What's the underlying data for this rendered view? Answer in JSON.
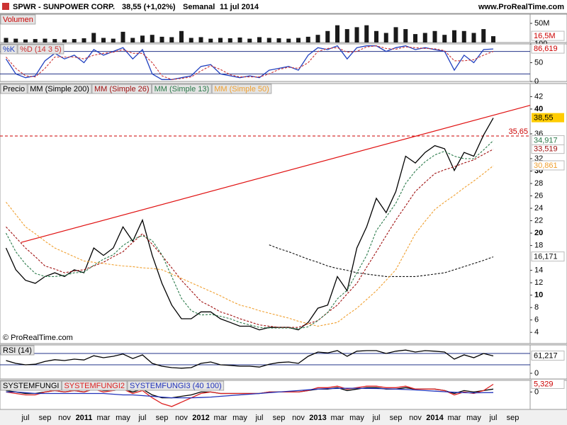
{
  "header": {
    "symbol": "SPWR - SUNPOWER CORP.",
    "price": "38,55 (+1,02%)",
    "period": "Semanal",
    "date": "11 jul 2014",
    "site": "www.ProRealTime.com"
  },
  "chart_data": [
    {
      "type": "bar",
      "title": "Volumen",
      "color": "#1a1a1a",
      "values": [
        12000000,
        10000000,
        8000000,
        9000000,
        10000000,
        9000000,
        8000000,
        9000000,
        11000000,
        25000000,
        12000000,
        10000000,
        28000000,
        12000000,
        18000000,
        20000000,
        15000000,
        14000000,
        30000000,
        12000000,
        14000000,
        10000000,
        12000000,
        11000000,
        13000000,
        10000000,
        14000000,
        12000000,
        11000000,
        10000000,
        12000000,
        15000000,
        20000000,
        30000000,
        45000000,
        35000000,
        40000000,
        45000000,
        30000000,
        25000000,
        40000000,
        35000000,
        22000000,
        25000000,
        30000000,
        20000000,
        32000000,
        30000000,
        25000000,
        35000000,
        16500000,
        null,
        null
      ],
      "last_label": "16,5M",
      "label_text_color": "#cc0000",
      "ylim": [
        0,
        74000000
      ],
      "yticks": [
        {
          "value": 50000000,
          "label": "50M"
        }
      ]
    },
    {
      "type": "line",
      "series": [
        {
          "name": "%K",
          "color": "#1f3fbf",
          "last_label": "86,619",
          "label_text_color": "#cc0000",
          "values": [
            60,
            20,
            10,
            15,
            55,
            75,
            60,
            70,
            50,
            85,
            70,
            80,
            90,
            60,
            85,
            20,
            5,
            5,
            10,
            15,
            40,
            45,
            20,
            15,
            10,
            15,
            10,
            30,
            35,
            40,
            30,
            70,
            90,
            85,
            95,
            60,
            90,
            95,
            95,
            80,
            90,
            95,
            85,
            90,
            85,
            80,
            30,
            70,
            50,
            85,
            86.619,
            null,
            null
          ]
        },
        {
          "name": "%D (14 3 5)",
          "color": "#cc3333",
          "dash": true,
          "values": [
            65,
            35,
            15,
            12,
            35,
            65,
            65,
            65,
            60,
            70,
            75,
            78,
            85,
            75,
            75,
            50,
            15,
            5,
            8,
            12,
            28,
            42,
            32,
            18,
            12,
            12,
            12,
            20,
            32,
            38,
            35,
            50,
            80,
            88,
            90,
            78,
            80,
            92,
            95,
            88,
            86,
            92,
            90,
            88,
            87,
            82,
            55,
            55,
            58,
            70,
            80,
            null,
            null
          ]
        }
      ],
      "ylim": [
        0,
        100
      ],
      "yticks": [
        0,
        50,
        100
      ],
      "levels": [
        20,
        80
      ]
    },
    {
      "type": "line",
      "series": [
        {
          "name": "Precio",
          "color": "#000000",
          "last_label": "38,55",
          "label_color": "#ffcc00",
          "label_text_color": "#000000",
          "values": [
            17.6,
            14.1,
            12.4,
            11.9,
            13.0,
            13.6,
            13.0,
            14.1,
            13.6,
            17.6,
            16.4,
            17.6,
            21.0,
            18.7,
            22.1,
            16.4,
            11.9,
            8.4,
            6.2,
            6.2,
            7.3,
            7.3,
            6.2,
            5.6,
            5.0,
            5.0,
            4.4,
            4.8,
            4.8,
            4.8,
            4.4,
            5.6,
            7.9,
            8.4,
            13.0,
            10.7,
            17.6,
            21.0,
            25.6,
            23.3,
            26.7,
            32.4,
            31.3,
            33.0,
            34.1,
            33.6,
            30.1,
            33.0,
            32.4,
            35.8,
            38.55,
            null,
            null
          ]
        },
        {
          "name": "MM (Simple 200)",
          "color": "#111111",
          "dash": true,
          "last_label": "16,171",
          "values": [
            null,
            null,
            null,
            null,
            null,
            null,
            null,
            null,
            null,
            null,
            null,
            null,
            null,
            null,
            null,
            null,
            null,
            null,
            null,
            null,
            null,
            null,
            null,
            null,
            null,
            null,
            null,
            18.1,
            17.5,
            17.0,
            16.4,
            15.8,
            15.3,
            14.7,
            14.3,
            14.0,
            13.6,
            13.4,
            13.2,
            13.0,
            13.0,
            13.0,
            13.0,
            13.2,
            13.4,
            13.6,
            14.1,
            14.6,
            15.1,
            15.6,
            16.171,
            null,
            null
          ]
        },
        {
          "name": "MM (Simple 26)",
          "color": "#a01010",
          "dash": true,
          "last_label": "33,519",
          "values": [
            21.0,
            19.3,
            17.6,
            16.2,
            14.7,
            14.2,
            13.6,
            13.9,
            14.1,
            14.7,
            15.3,
            16.2,
            17.0,
            18.5,
            19.9,
            18.2,
            16.4,
            14.4,
            12.4,
            10.7,
            9.0,
            8.2,
            7.3,
            6.8,
            6.2,
            5.7,
            5.2,
            5.0,
            4.8,
            4.8,
            4.8,
            5.4,
            5.9,
            7.2,
            8.4,
            10.2,
            11.9,
            14.5,
            17.0,
            19.6,
            22.1,
            24.4,
            26.7,
            28.2,
            29.6,
            30.2,
            30.7,
            31.3,
            31.8,
            32.7,
            33.519,
            null,
            null
          ]
        },
        {
          "name": "MM (Simple 13)",
          "color": "#2a7a4a",
          "dash": true,
          "last_label": "34,917",
          "values": [
            20.0,
            17.0,
            15.0,
            13.5,
            13.0,
            13.0,
            13.2,
            13.6,
            13.7,
            14.8,
            15.8,
            16.5,
            18.0,
            19.0,
            19.6,
            18.8,
            16.5,
            13.0,
            9.5,
            7.5,
            6.8,
            6.9,
            6.6,
            6.2,
            5.6,
            5.2,
            4.8,
            4.7,
            4.7,
            4.7,
            4.6,
            4.9,
            5.9,
            7.2,
            9.4,
            10.8,
            13.6,
            16.4,
            20.4,
            22.6,
            24.8,
            28.0,
            30.0,
            31.5,
            32.6,
            33.2,
            32.4,
            32.0,
            32.0,
            33.4,
            34.917,
            null,
            null
          ]
        },
        {
          "name": "MM (Simple 50)",
          "color": "#f0a030",
          "dash": true,
          "last_label": "30,861",
          "values": [
            25.0,
            23.0,
            21.0,
            19.9,
            18.7,
            17.6,
            16.9,
            16.2,
            15.5,
            15.3,
            15.1,
            14.9,
            14.7,
            14.6,
            14.4,
            14.3,
            14.1,
            13.4,
            12.7,
            12.0,
            11.3,
            10.6,
            9.9,
            9.1,
            8.4,
            8.0,
            7.5,
            7.1,
            6.7,
            6.3,
            5.8,
            5.4,
            5.0,
            5.3,
            5.6,
            6.8,
            7.9,
            9.3,
            10.7,
            12.4,
            14.1,
            17.0,
            19.9,
            21.9,
            23.8,
            25.0,
            26.1,
            27.3,
            28.4,
            29.6,
            30.861,
            null,
            null
          ]
        }
      ],
      "ylim": [
        2.2,
        44.1
      ],
      "yticks": [
        4,
        6,
        8,
        10,
        12,
        14,
        18,
        20,
        22,
        24,
        26,
        28,
        30,
        32,
        36,
        40,
        42
      ],
      "hline": {
        "value": 35.65,
        "label": "35,65",
        "color": "#cc0000"
      },
      "trendline": {
        "values": [
          18.5,
          40.6
        ],
        "color": "#e01010"
      },
      "watermark": "© ProRealTime.com"
    },
    {
      "type": "line",
      "title": "RSI (14)",
      "series": [
        {
          "color": "#000000",
          "last_label": "61,217",
          "values": [
            45,
            35,
            30,
            32,
            42,
            48,
            45,
            50,
            47,
            62,
            55,
            60,
            68,
            52,
            65,
            35,
            25,
            20,
            18,
            20,
            35,
            40,
            30,
            28,
            25,
            25,
            22,
            32,
            38,
            40,
            35,
            60,
            75,
            72,
            80,
            60,
            78,
            80,
            80,
            70,
            78,
            82,
            75,
            80,
            78,
            75,
            50,
            65,
            55,
            70,
            61.217,
            null,
            null
          ]
        }
      ],
      "ylim": [
        -20,
        100
      ],
      "yticks": [
        0
      ],
      "levels": [
        30,
        70
      ]
    },
    {
      "type": "line",
      "series": [
        {
          "name": "SYSTEMFUNGI",
          "color": "#000000",
          "values": [
            1,
            0,
            -1,
            -1,
            0,
            1,
            0,
            1,
            0,
            2,
            1,
            1,
            2,
            0,
            2,
            -2,
            -4,
            -4,
            -3,
            -2,
            0,
            0,
            -1,
            -1,
            -1,
            -1,
            -1,
            0,
            0,
            0,
            0,
            1,
            2,
            2,
            3,
            1,
            2,
            3,
            3,
            2,
            2,
            3,
            2,
            2,
            2,
            1,
            -1,
            1,
            0,
            1,
            2,
            null,
            null
          ]
        },
        {
          "name": "SYSTEMFUNGI2",
          "color": "#dd2222",
          "last_label": "5,329",
          "label_text_color": "#cc0000",
          "values": [
            0,
            -1,
            -2,
            -2,
            0,
            1,
            0,
            1,
            0,
            2,
            0,
            1,
            2,
            -1,
            1,
            -4,
            -8,
            -10,
            -7,
            -4,
            -1,
            0,
            -1,
            -1,
            -1,
            -1,
            -1,
            0,
            0,
            0,
            0,
            1,
            3,
            3,
            4,
            2,
            3,
            4,
            4,
            3,
            3,
            4,
            2,
            2,
            2,
            1,
            -2,
            0,
            -1,
            1,
            5.329,
            null,
            null
          ]
        },
        {
          "name": "SYSTEMFUNGI3 (40 100)",
          "color": "#2233bb",
          "values": [
            0,
            0,
            -0.5,
            -1,
            -1,
            -1,
            -1,
            -1,
            -1,
            -1,
            -1,
            -1.5,
            -2,
            -2,
            -2.5,
            -3,
            -3.5,
            -4,
            -4,
            -4,
            -3.8,
            -3.5,
            -3,
            -2.5,
            -2,
            -1.5,
            -1,
            -0.5,
            0,
            0.5,
            1,
            1.5,
            2,
            2.3,
            2.5,
            2.6,
            2.6,
            2.5,
            2.4,
            2.2,
            2,
            1.7,
            1.4,
            1,
            0.6,
            0.2,
            -0.2,
            -0.5,
            -0.6,
            -0.5,
            -0.4,
            null,
            null
          ]
        }
      ],
      "ylim": [
        -12,
        8
      ],
      "yticks": [
        0
      ],
      "categories": [
        null,
        null,
        "jul",
        null,
        "sep",
        null,
        "nov",
        null,
        "2011",
        null,
        "mar",
        null,
        "may",
        null,
        "jul",
        null,
        "sep",
        null,
        "nov",
        null,
        "2012",
        null,
        "mar",
        null,
        "may",
        null,
        "jul",
        null,
        "sep",
        null,
        "nov",
        null,
        "2013",
        null,
        "mar",
        null,
        "may",
        null,
        "jul",
        null,
        "sep",
        null,
        "nov",
        null,
        "2014",
        null,
        "mar",
        null,
        "may",
        null,
        "jul",
        null,
        "sep"
      ]
    }
  ]
}
